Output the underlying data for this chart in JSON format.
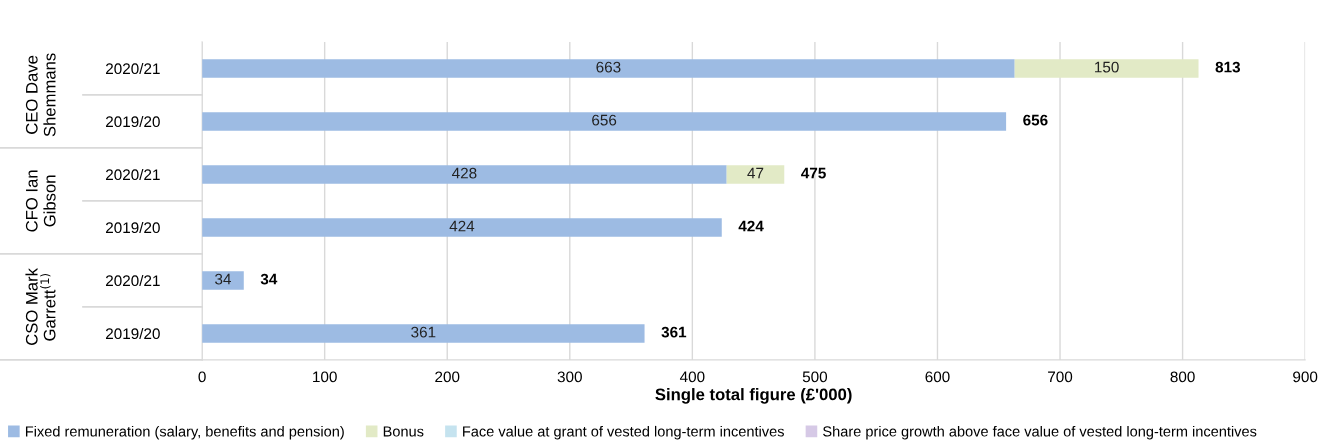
{
  "chart_data": {
    "type": "bar",
    "orientation": "horizontal",
    "stacked": true,
    "categories": [
      "2020/21",
      "2019/20",
      "2020/21",
      "2019/20",
      "2020/21",
      "2019/20"
    ],
    "series": [
      {
        "name": "Fixed remuneration (salary, benefits and pension)",
        "color": "#9dbbe3",
        "values": [
          663,
          656,
          428,
          424,
          34,
          361
        ]
      },
      {
        "name": "Bonus",
        "color": "#e2eac6",
        "values": [
          150,
          null,
          47,
          null,
          null,
          null
        ]
      },
      {
        "name": "Face value at grant of vested long-term incentives",
        "color": "#c5e3ef",
        "values": [
          null,
          null,
          null,
          null,
          null,
          null
        ]
      },
      {
        "name": "Share price growth above face value of vested long-term incentives",
        "color": "#d6c9e6",
        "values": [
          null,
          null,
          null,
          null,
          null,
          null
        ]
      }
    ],
    "totals": [
      "813",
      "656",
      "475",
      "424",
      "34",
      "361"
    ],
    "data_labels": true,
    "xlabel": "Single total figure (£'000)",
    "xlim": [
      0,
      900
    ],
    "xticks": [
      0,
      100,
      200,
      300,
      400,
      500,
      600,
      700,
      800,
      900
    ],
    "grid": "x",
    "legend": "bottom",
    "annotations": [
      "CEO Dave Shemmans",
      "CFO Ian Gibson",
      "CSO Mark Garrett$^{(1)}$"
    ]
  }
}
